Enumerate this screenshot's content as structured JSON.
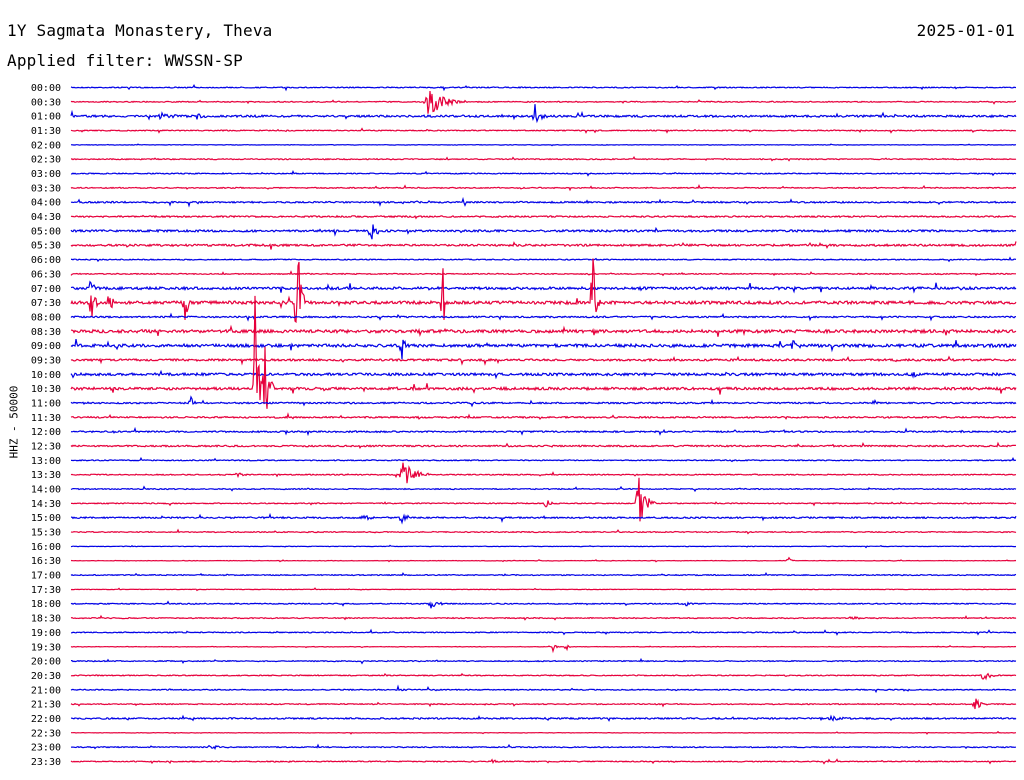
{
  "header": {
    "station": "1Y Sagmata Monastery, Theva",
    "date": "2025-01-01",
    "filter_label": "Applied filter: WWSSN-SP"
  },
  "y_axis_label": "HHZ - 50000",
  "colors": {
    "trace_a": "#0000e6",
    "trace_b": "#e6003c"
  },
  "chart_data": {
    "type": "line",
    "title": "1Y Sagmata Monastery, Theva",
    "ylabel": "HHZ - 50000",
    "rows": [
      "00:00",
      "00:30",
      "01:00",
      "01:30",
      "02:00",
      "02:30",
      "03:00",
      "03:30",
      "04:00",
      "04:30",
      "05:00",
      "05:30",
      "06:00",
      "06:30",
      "07:00",
      "07:30",
      "08:00",
      "08:30",
      "09:00",
      "09:30",
      "10:00",
      "10:30",
      "11:00",
      "11:30",
      "12:00",
      "12:30",
      "13:00",
      "13:30",
      "14:00",
      "14:30",
      "15:00",
      "15:30",
      "16:00",
      "16:30",
      "17:00",
      "17:30",
      "18:00",
      "18:30",
      "19:00",
      "19:30",
      "20:00",
      "20:30",
      "21:00",
      "21:30",
      "22:00",
      "22:30",
      "23:00",
      "23:30"
    ],
    "row_noise": [
      1,
      1,
      2,
      1,
      0.5,
      1,
      1,
      1,
      1.5,
      1.5,
      2,
      2,
      1,
      1,
      2.5,
      3,
      1.5,
      3,
      3,
      2,
      2.5,
      2.5,
      1.5,
      1.5,
      1.5,
      1.5,
      1,
      1,
      1,
      1,
      1.5,
      1,
      0.5,
      0.5,
      1,
      0.5,
      1,
      1,
      1,
      0.5,
      1,
      1,
      1,
      1,
      1.5,
      0.5,
      1,
      1
    ],
    "events": [
      {
        "row": 1,
        "x": 428,
        "amp": 16,
        "len": 40
      },
      {
        "row": 2,
        "x": 535,
        "amp": 12,
        "len": 18
      },
      {
        "row": 2,
        "x": 160,
        "amp": 4,
        "len": 30
      },
      {
        "row": 2,
        "x": 196,
        "amp": 3,
        "len": 20
      },
      {
        "row": 10,
        "x": 371,
        "amp": 13,
        "len": 12
      },
      {
        "row": 14,
        "x": 92,
        "amp": 18,
        "len": 4
      },
      {
        "row": 15,
        "x": 92,
        "amp": 30,
        "len": 6
      },
      {
        "row": 15,
        "x": 110,
        "amp": 28,
        "len": 6
      },
      {
        "row": 15,
        "x": 185,
        "amp": 55,
        "len": 6
      },
      {
        "row": 15,
        "x": 297,
        "amp": 98,
        "len": 8
      },
      {
        "row": 15,
        "x": 443,
        "amp": 36,
        "len": 6
      },
      {
        "row": 15,
        "x": 593,
        "amp": 70,
        "len": 8
      },
      {
        "row": 17,
        "x": 418,
        "amp": 8,
        "len": 8
      },
      {
        "row": 18,
        "x": 402,
        "amp": 16,
        "len": 8
      },
      {
        "row": 18,
        "x": 792,
        "amp": 9,
        "len": 10
      },
      {
        "row": 20,
        "x": 912,
        "amp": 6,
        "len": 12
      },
      {
        "row": 21,
        "x": 255,
        "amp": 90,
        "len": 10
      },
      {
        "row": 21,
        "x": 265,
        "amp": 50,
        "len": 10
      },
      {
        "row": 22,
        "x": 191,
        "amp": 7,
        "len": 8
      },
      {
        "row": 27,
        "x": 402,
        "amp": 16,
        "len": 30
      },
      {
        "row": 27,
        "x": 238,
        "amp": 4,
        "len": 10
      },
      {
        "row": 29,
        "x": 638,
        "amp": 32,
        "len": 18
      },
      {
        "row": 29,
        "x": 545,
        "amp": 5,
        "len": 14
      },
      {
        "row": 30,
        "x": 402,
        "amp": 8,
        "len": 10
      },
      {
        "row": 30,
        "x": 364,
        "amp": 3,
        "len": 20
      },
      {
        "row": 33,
        "x": 789,
        "amp": 4,
        "len": 6
      },
      {
        "row": 36,
        "x": 430,
        "amp": 6,
        "len": 16
      },
      {
        "row": 36,
        "x": 685,
        "amp": 3,
        "len": 12
      },
      {
        "row": 37,
        "x": 852,
        "amp": 3,
        "len": 16
      },
      {
        "row": 39,
        "x": 553,
        "amp": 6,
        "len": 8
      },
      {
        "row": 39,
        "x": 567,
        "amp": 4,
        "len": 6
      },
      {
        "row": 41,
        "x": 983,
        "amp": 8,
        "len": 14
      },
      {
        "row": 42,
        "x": 398,
        "amp": 4,
        "len": 14
      },
      {
        "row": 43,
        "x": 975,
        "amp": 8,
        "len": 14
      },
      {
        "row": 44,
        "x": 830,
        "amp": 3,
        "len": 24
      },
      {
        "row": 46,
        "x": 210,
        "amp": 3,
        "len": 20
      },
      {
        "row": 47,
        "x": 492,
        "amp": 3,
        "len": 14
      }
    ]
  }
}
